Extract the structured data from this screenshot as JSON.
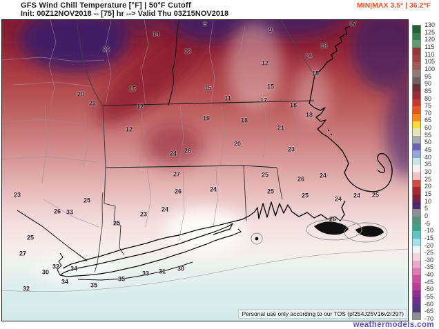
{
  "header": {
    "title": "GFS Wind Chill Temperature [°F] | 50°F Cutoff",
    "init_line": "Init: 00Z12NOV2018 -- [75] hr --> Valid Thu 03Z15NOV2018",
    "minmax_label": "MIN|MAX 3.5° | 36.2°F",
    "minmax_color": "#f0512a"
  },
  "map": {
    "values": [
      [
        20,
        151,
        43
      ],
      [
        14,
        223,
        21
      ],
      [
        9,
        294,
        6
      ],
      [
        9,
        389,
        15
      ],
      [
        17,
        508,
        6
      ],
      [
        18,
        466,
        38
      ],
      [
        14,
        444,
        53
      ],
      [
        12,
        269,
        46
      ],
      [
        12,
        381,
        63
      ],
      [
        15,
        298,
        99
      ],
      [
        15,
        389,
        97
      ],
      [
        15,
        454,
        78
      ],
      [
        20,
        114,
        108
      ],
      [
        15,
        189,
        100
      ],
      [
        22,
        131,
        121
      ],
      [
        11,
        327,
        114
      ],
      [
        17,
        379,
        117
      ],
      [
        12,
        200,
        126
      ],
      [
        19,
        296,
        143
      ],
      [
        18,
        351,
        146
      ],
      [
        18,
        422,
        124
      ],
      [
        18,
        445,
        138
      ],
      [
        12,
        184,
        159
      ],
      [
        21,
        404,
        157
      ],
      [
        20,
        341,
        180
      ],
      [
        23,
        419,
        188
      ],
      [
        24,
        248,
        194
      ],
      [
        26,
        269,
        190
      ],
      [
        27,
        253,
        224
      ],
      [
        25,
        381,
        225
      ],
      [
        24,
        465,
        226
      ],
      [
        26,
        433,
        231
      ],
      [
        26,
        255,
        249
      ],
      [
        24,
        306,
        246
      ],
      [
        25,
        389,
        249
      ],
      [
        25,
        439,
        255
      ],
      [
        24,
        487,
        260
      ],
      [
        24,
        514,
        255
      ],
      [
        25,
        541,
        254
      ],
      [
        24,
        236,
        275
      ],
      [
        23,
        205,
        282
      ],
      [
        23,
        22,
        254
      ],
      [
        25,
        123,
        262
      ],
      [
        26,
        479,
        289
      ],
      [
        26,
        80,
        278
      ],
      [
        33,
        98,
        279
      ],
      [
        25,
        166,
        295
      ],
      [
        25,
        41,
        316
      ],
      [
        27,
        30,
        339
      ],
      [
        32,
        78,
        358
      ],
      [
        34,
        104,
        361
      ],
      [
        30,
        63,
        366
      ],
      [
        34,
        91,
        380
      ],
      [
        35,
        133,
        385
      ],
      [
        35,
        173,
        376
      ],
      [
        32,
        35,
        390
      ],
      [
        33,
        208,
        368
      ],
      [
        31,
        232,
        365
      ],
      [
        30,
        259,
        361
      ]
    ]
  },
  "colorbar": {
    "unit": "°F",
    "tick_labels": [
      "130",
      "125",
      "120",
      "115",
      "110",
      "105",
      "100",
      "95",
      "90",
      "85",
      "80",
      "75",
      "70",
      "65",
      "60",
      "55",
      "50",
      "45",
      "40",
      "35",
      "30",
      "25",
      "20",
      "15",
      "10",
      "5",
      "0",
      "-5",
      "-10",
      "-15",
      "-20",
      "-25",
      "-30",
      "-35",
      "-40",
      "-45",
      "-50",
      "-55",
      "-60",
      "-65",
      "-70"
    ],
    "segment_colors": [
      "#275e35",
      "#3f7d4f",
      "#629a72",
      "#8f3a38",
      "#9c4442",
      "#a05a55",
      "#8f7b76",
      "#6e605e",
      "#702f36",
      "#962f34",
      "#bf3a30",
      "#e25822",
      "#f5861f",
      "#f7d83b",
      "#e8e4b8",
      "#a8a8b0",
      "#6b5fb0",
      "#8fa8d5",
      "#c8e6ea",
      "#f6efee",
      "#eec0c2",
      "#cc4a42",
      "#a32a2e",
      "#7c2340",
      "#4a2a72",
      "#8e8e96",
      "#55917e",
      "#3fa08a",
      "#5fc4c8",
      "#a5e2e8",
      "#edf6f4",
      "#f3d3de",
      "#eaa8c8",
      "#dd7ab2",
      "#cc509c",
      "#b83e96",
      "#93308e",
      "#6b2f8c",
      "#4f3a80",
      "#8c8c94"
    ]
  },
  "footer": {
    "tos_notice": "Personal use only according to our TOS (pf254J25V16v2r297)",
    "site_name": "weathermodels.com",
    "site_color": "#5a4fd0"
  }
}
